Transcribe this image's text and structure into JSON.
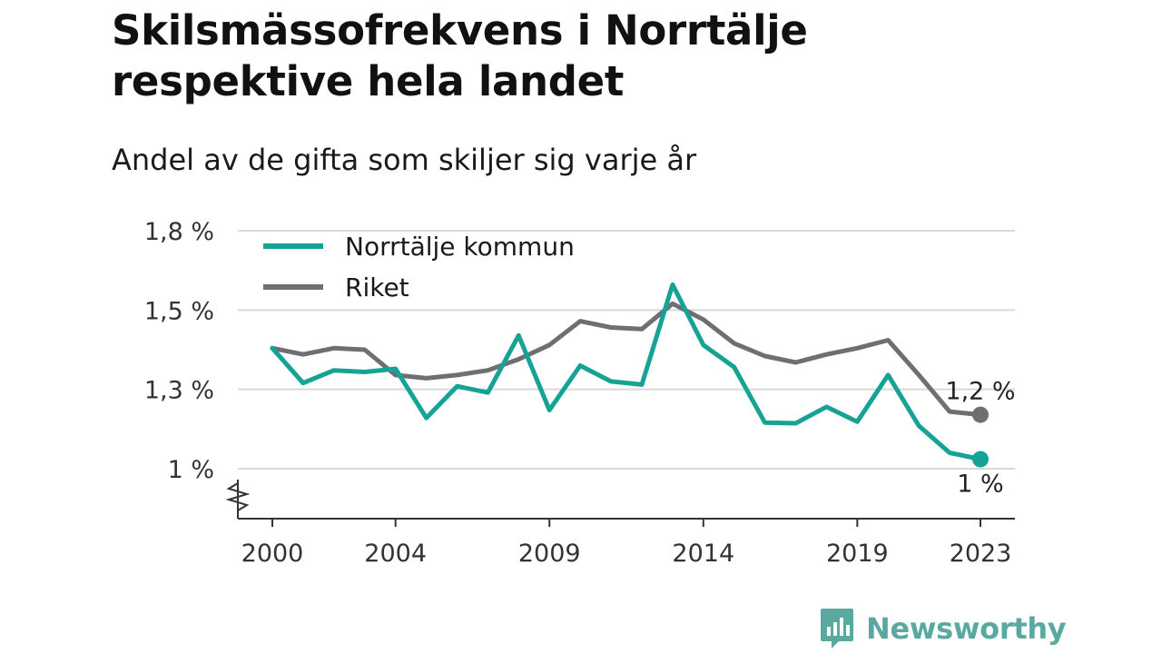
{
  "header": {
    "title_line1": "Skilsmässofrekvens i Norrtälje",
    "title_line2": "respektive hela landet",
    "subtitle": "Andel av de gifta som skiljer sig varje år"
  },
  "colors": {
    "norrtalje": "#16a396",
    "riket": "#6f6e73",
    "grid": "#d9d9d9",
    "axis": "#333333",
    "brand": "#5aa9a0"
  },
  "chart_data": {
    "type": "line",
    "x": [
      2000,
      2001,
      2002,
      2003,
      2004,
      2005,
      2006,
      2007,
      2008,
      2009,
      2010,
      2011,
      2012,
      2013,
      2014,
      2015,
      2016,
      2017,
      2018,
      2019,
      2020,
      2021,
      2022,
      2023
    ],
    "series": [
      {
        "name": "Norrtälje kommun",
        "color_key": "norrtalje",
        "values": [
          1.38,
          1.27,
          1.31,
          1.305,
          1.315,
          1.16,
          1.26,
          1.24,
          1.42,
          1.185,
          1.325,
          1.275,
          1.265,
          1.58,
          1.39,
          1.32,
          1.145,
          1.143,
          1.195,
          1.148,
          1.295,
          1.135,
          1.05,
          1.03
        ]
      },
      {
        "name": "Riket",
        "color_key": "riket",
        "values": [
          1.38,
          1.36,
          1.38,
          1.375,
          1.295,
          1.285,
          1.295,
          1.31,
          1.345,
          1.39,
          1.465,
          1.445,
          1.44,
          1.52,
          1.47,
          1.395,
          1.355,
          1.335,
          1.36,
          1.38,
          1.405,
          1.295,
          1.18,
          1.17
        ]
      }
    ],
    "y_ticks": [
      {
        "value": 1.0,
        "label": "1 %"
      },
      {
        "value": 1.25,
        "label": "1,3 %"
      },
      {
        "value": 1.5,
        "label": "1,5 %"
      },
      {
        "value": 1.75,
        "label": "1,8 %"
      }
    ],
    "x_ticks": [
      2000,
      2004,
      2009,
      2014,
      2019,
      2023
    ],
    "ylim": [
      1.0,
      1.75
    ],
    "y_axis_break": true,
    "end_labels": [
      {
        "series": "Riket",
        "label": "1,2 %"
      },
      {
        "series": "Norrtälje kommun",
        "label": "1 %"
      }
    ],
    "legend_placement": "top-left",
    "grid": true
  },
  "brand": {
    "name": "Newsworthy",
    "icon": "newsworthy-logo-icon"
  }
}
